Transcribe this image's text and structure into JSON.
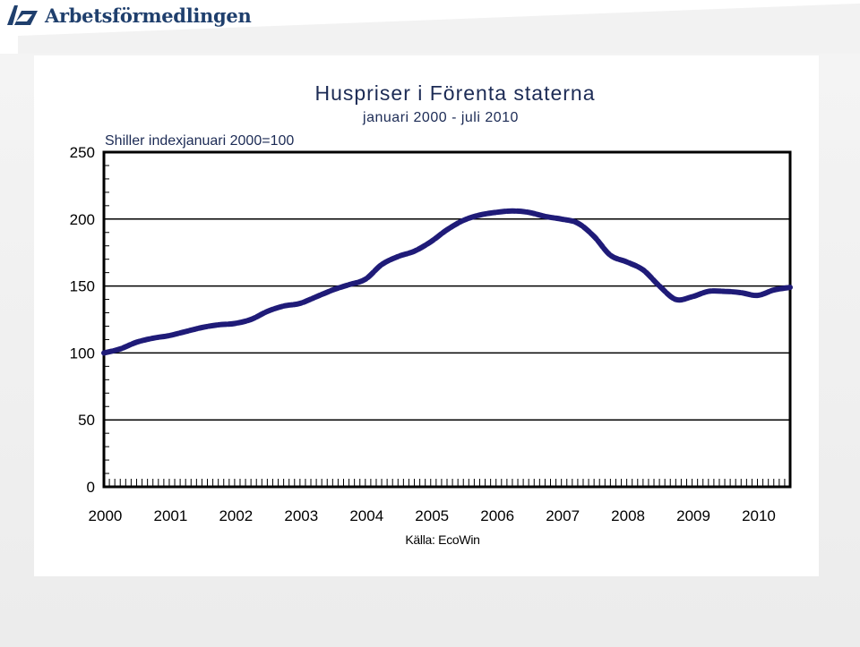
{
  "logo": {
    "name": "Arbetsförmedlingen",
    "icon": "af-wing-icon",
    "color": "#1f3f6d"
  },
  "chart_data": {
    "type": "line",
    "title": "Huspriser i Förenta staterna",
    "subtitle": "januari 2000 - juli 2010",
    "ylabel": "Shiller indexjanuari 2000=100",
    "source": "Källa: EcoWin",
    "ylim": [
      0,
      250
    ],
    "yticks": [
      0,
      50,
      100,
      150,
      200,
      250
    ],
    "xticks": [
      "2000",
      "2001",
      "2002",
      "2003",
      "2004",
      "2005",
      "2006",
      "2007",
      "2008",
      "2009",
      "2010"
    ],
    "grid": true,
    "line_color": "#1f1b78",
    "series": [
      {
        "x": [
          2000.0,
          2000.25,
          2000.5,
          2000.75,
          2001.0,
          2001.25,
          2001.5,
          2001.75,
          2002.0,
          2002.25,
          2002.5,
          2002.75,
          2003.0,
          2003.25,
          2003.5,
          2003.75,
          2004.0,
          2004.25,
          2004.5,
          2004.75,
          2005.0,
          2005.25,
          2005.5,
          2005.75,
          2006.0,
          2006.25,
          2006.5,
          2006.75,
          2007.0,
          2007.25,
          2007.5,
          2007.75,
          2008.0,
          2008.25,
          2008.5,
          2008.75,
          2009.0,
          2009.25,
          2009.5,
          2009.75,
          2010.0,
          2010.25,
          2010.5
        ],
        "values": [
          100,
          103,
          108,
          111,
          113,
          116,
          119,
          121,
          122,
          125,
          131,
          135,
          137,
          142,
          147,
          151,
          155,
          166,
          172,
          176,
          183,
          192,
          199,
          203,
          205,
          206,
          205,
          202,
          200,
          197,
          187,
          173,
          168,
          162,
          150,
          140,
          142,
          146,
          146,
          145,
          143,
          147,
          149
        ]
      }
    ]
  }
}
